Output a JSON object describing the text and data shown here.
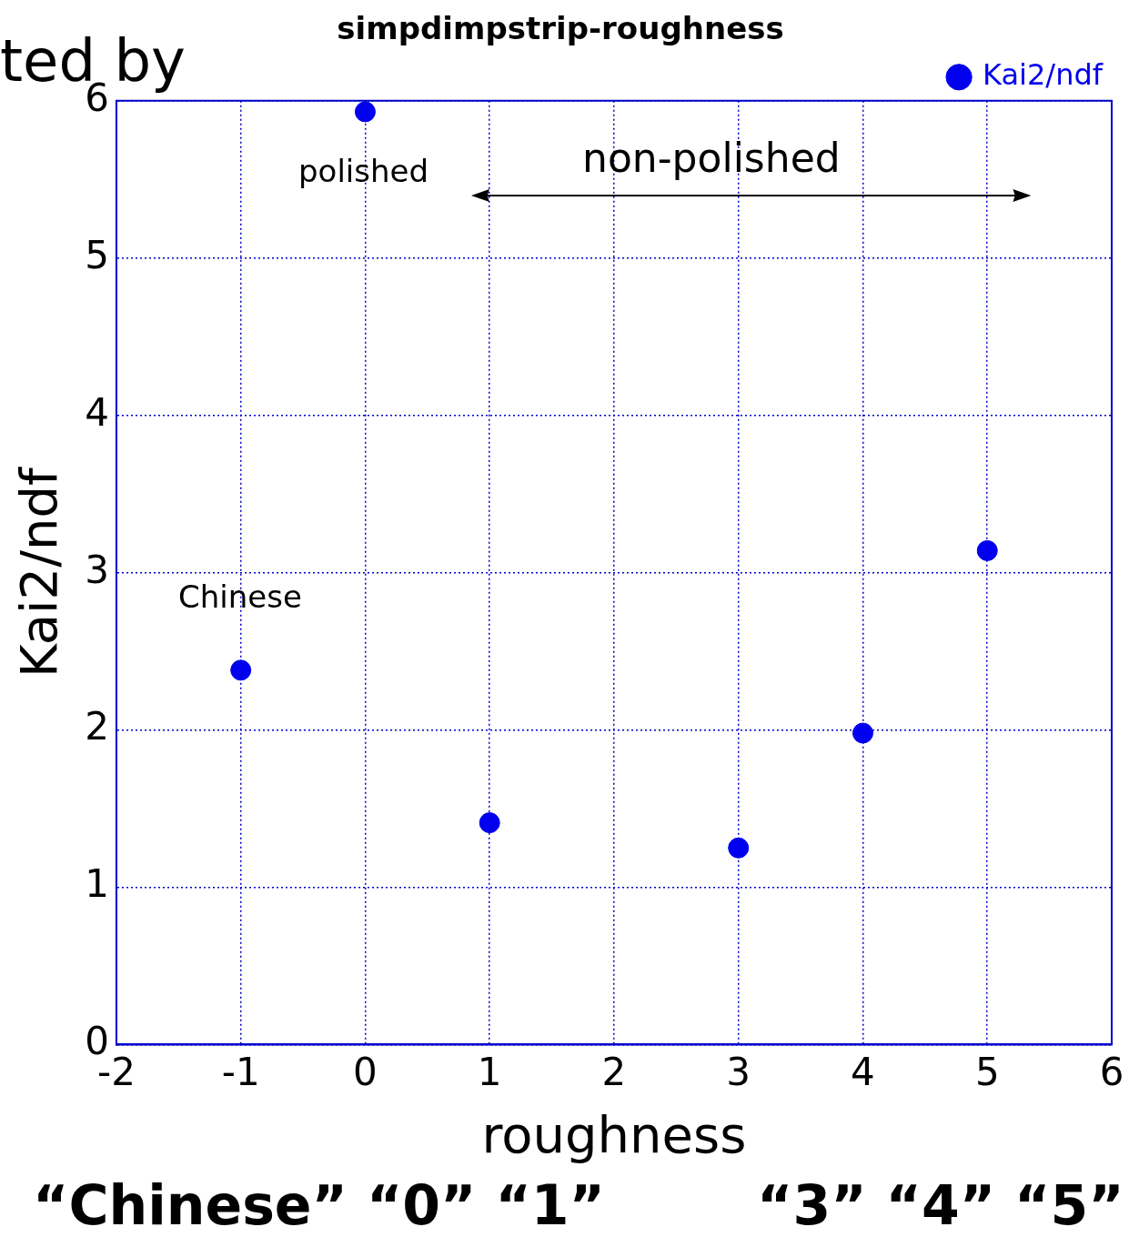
{
  "chart_data": {
    "type": "scatter",
    "title": "simpdimpstrip-roughness",
    "xlabel": "roughness",
    "ylabel": "Kai2/ndf",
    "x": [
      -1,
      0,
      1,
      3,
      4,
      5
    ],
    "series": [
      {
        "name": "Kai2/ndf",
        "color": "#0000ee",
        "values": [
          2.38,
          5.93,
          1.41,
          1.25,
          1.98,
          3.14
        ]
      }
    ],
    "xlim": [
      -2,
      6
    ],
    "xticks": [
      -2,
      -1,
      0,
      1,
      2,
      3,
      4,
      5,
      6
    ],
    "ylim": [
      0,
      6
    ],
    "yticks": [
      0,
      1,
      2,
      3,
      4,
      5,
      6
    ],
    "grid": true,
    "legend": "top right",
    "marker": "circle",
    "annotations": [
      "ted by",
      "polished",
      "non-polished",
      "Chinese",
      "“Chinese” “0” “1”        “3” “4” “5”"
    ]
  }
}
